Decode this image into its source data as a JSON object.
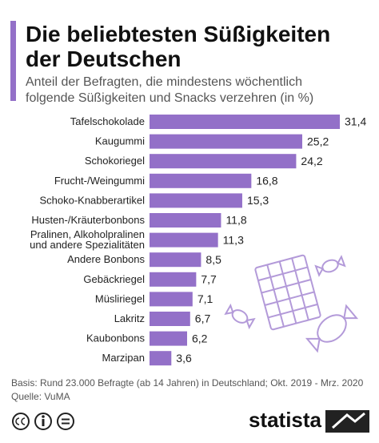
{
  "chart_data": {
    "type": "bar",
    "orientation": "horizontal",
    "title": "Die beliebtesten Süßigkeiten der Deutschen",
    "subtitle": "Anteil der Befragten, die mindestens wöchentlich folgende Süßigkeiten und Snacks verzehren (in %)",
    "categories": [
      "Tafelschokolade",
      "Kaugummi",
      "Schokoriegel",
      "Frucht-/Weingummi",
      "Schoko-Knabberartikel",
      "Husten-/Kräuterbonbons",
      "Pralinen, Alkoholpralinen\nund andere Spezialitäten",
      "Andere Bonbons",
      "Gebäckriegel",
      "Müsliriegel",
      "Lakritz",
      "Kaubonbons",
      "Marzipan"
    ],
    "values": [
      31.4,
      25.2,
      24.2,
      16.8,
      15.3,
      11.8,
      11.3,
      8.5,
      7.7,
      7.1,
      6.7,
      6.2,
      3.6
    ],
    "value_labels": [
      "31,4",
      "25,2",
      "24,2",
      "16,8",
      "15,3",
      "11,8",
      "11,3",
      "8,5",
      "7,7",
      "7,1",
      "6,7",
      "6,2",
      "3,6"
    ],
    "color": "#9370c8",
    "source_note": "Basis: Rund 23.000 Befragte (ab 14 Jahren) in Deutschland; Okt. 2019 - Mrz. 2020",
    "source": "Quelle: VuMA",
    "logo": "statista"
  }
}
